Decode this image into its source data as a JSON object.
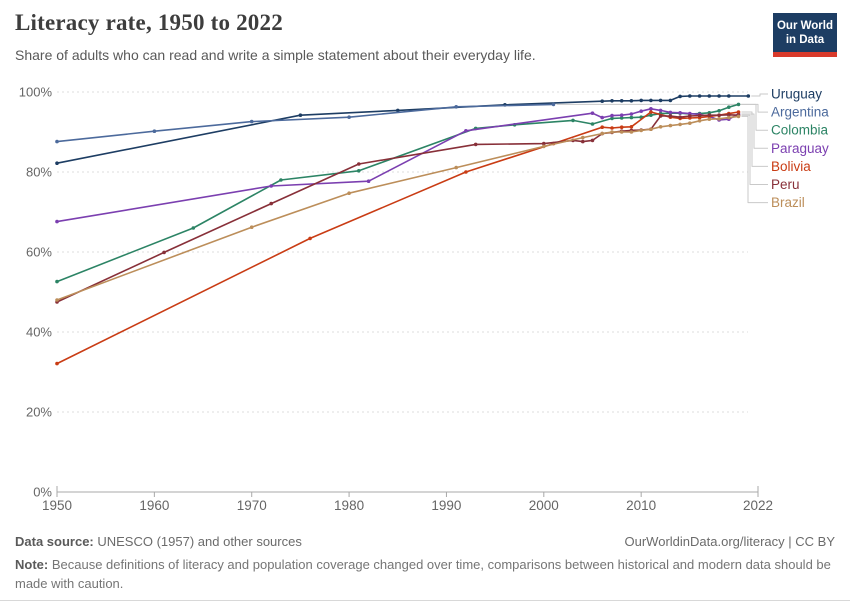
{
  "header": {
    "title": "Literacy rate, 1950 to 2022",
    "subtitle": "Share of adults who can read and write a simple statement about their everyday life.",
    "logo": {
      "line1": "Our World",
      "line2": "in Data",
      "bg": "#1d3d63",
      "accent": "#d93a2b"
    }
  },
  "chart_data": {
    "type": "line",
    "title": "Literacy rate, 1950 to 2022",
    "xlabel": "",
    "ylabel": "",
    "x_axis": {
      "range": [
        1950,
        2022
      ],
      "ticks": [
        1950,
        1960,
        1970,
        1980,
        1990,
        2000,
        2010,
        2022
      ]
    },
    "y_axis": {
      "range": [
        0,
        100
      ],
      "tick_values": [
        0,
        20,
        40,
        60,
        80,
        100
      ],
      "tick_labels": [
        "0%",
        "20%",
        "40%",
        "60%",
        "80%",
        "100%"
      ],
      "grid": "dashed"
    },
    "legend_position": "right",
    "colors": {
      "grid": "#dcdcdc",
      "axis": "#a8a8a8",
      "tick_text": "#666666",
      "connector": "#c9c9c9"
    },
    "series": [
      {
        "name": "Uruguay",
        "color": "#1d3d63",
        "points": [
          [
            1950,
            82.2
          ],
          [
            1975,
            94.2
          ],
          [
            1985,
            95.4
          ],
          [
            1996,
            96.8
          ],
          [
            2006,
            97.7
          ],
          [
            2007,
            97.8
          ],
          [
            2008,
            97.8
          ],
          [
            2009,
            97.8
          ],
          [
            2010,
            97.9
          ],
          [
            2011,
            97.9
          ],
          [
            2012,
            97.9
          ],
          [
            2013,
            97.9
          ],
          [
            2014,
            98.9
          ],
          [
            2015,
            99
          ],
          [
            2016,
            99
          ],
          [
            2017,
            99
          ],
          [
            2018,
            99
          ],
          [
            2019,
            99
          ],
          [
            2021,
            99
          ]
        ]
      },
      {
        "name": "Argentina",
        "color": "#4c6a9c",
        "points": [
          [
            1950,
            87.6
          ],
          [
            1960,
            90.2
          ],
          [
            1970,
            92.6
          ],
          [
            1980,
            93.7
          ],
          [
            1991,
            96.3
          ],
          [
            2001,
            96.9
          ]
        ]
      },
      {
        "name": "Colombia",
        "color": "#2c8465",
        "points": [
          [
            1950,
            52.6
          ],
          [
            1964,
            66
          ],
          [
            1973,
            78
          ],
          [
            1981,
            80.3
          ],
          [
            1993,
            90.9
          ],
          [
            1997,
            91.8
          ],
          [
            2003,
            92.9
          ],
          [
            2005,
            92
          ],
          [
            2007,
            93.4
          ],
          [
            2008,
            93.5
          ],
          [
            2009,
            93.6
          ],
          [
            2010,
            93.7
          ],
          [
            2011,
            94.2
          ],
          [
            2012,
            94.6
          ],
          [
            2013,
            94.7
          ],
          [
            2014,
            94.7
          ],
          [
            2015,
            94.5
          ],
          [
            2016,
            94.6
          ],
          [
            2017,
            94.8
          ],
          [
            2018,
            95.3
          ],
          [
            2019,
            96.2
          ],
          [
            2020,
            96.9
          ]
        ]
      },
      {
        "name": "Paraguay",
        "color": "#7b3fb0",
        "points": [
          [
            1950,
            67.6
          ],
          [
            1972,
            76.5
          ],
          [
            1982,
            77.7
          ],
          [
            1992,
            90.3
          ],
          [
            2005,
            94.7
          ],
          [
            2006,
            93.6
          ],
          [
            2007,
            94.1
          ],
          [
            2008,
            94.2
          ],
          [
            2009,
            94.5
          ],
          [
            2010,
            95.2
          ],
          [
            2011,
            95.8
          ],
          [
            2012,
            95.4
          ],
          [
            2013,
            94.9
          ],
          [
            2014,
            94.8
          ],
          [
            2015,
            94.6
          ],
          [
            2016,
            94.4
          ],
          [
            2017,
            93.9
          ],
          [
            2018,
            93
          ],
          [
            2019,
            93.2
          ],
          [
            2020,
            94.5
          ]
        ]
      },
      {
        "name": "Bolivia",
        "color": "#c93c14",
        "points": [
          [
            1950,
            32.1
          ],
          [
            1976,
            63.4
          ],
          [
            1992,
            80
          ],
          [
            2001,
            87.1
          ],
          [
            2006,
            91.2
          ],
          [
            2007,
            91
          ],
          [
            2008,
            91.2
          ],
          [
            2009,
            91.3
          ],
          [
            2011,
            95
          ],
          [
            2013,
            93.7
          ],
          [
            2014,
            93.4
          ],
          [
            2015,
            93.5
          ],
          [
            2016,
            93.6
          ],
          [
            2017,
            93.9
          ],
          [
            2018,
            94.2
          ],
          [
            2019,
            94.6
          ],
          [
            2020,
            95
          ]
        ]
      },
      {
        "name": "Peru",
        "color": "#883039",
        "points": [
          [
            1950,
            47.5
          ],
          [
            1961,
            59.9
          ],
          [
            1972,
            72.1
          ],
          [
            1981,
            82
          ],
          [
            1993,
            86.9
          ],
          [
            2000,
            87.1
          ],
          [
            2003,
            87.9
          ],
          [
            2004,
            87.6
          ],
          [
            2005,
            87.9
          ],
          [
            2006,
            89.6
          ],
          [
            2007,
            89.9
          ],
          [
            2008,
            90.2
          ],
          [
            2009,
            90.4
          ],
          [
            2010,
            90.5
          ],
          [
            2011,
            90.7
          ],
          [
            2012,
            94
          ],
          [
            2013,
            94
          ],
          [
            2014,
            93.7
          ],
          [
            2015,
            94
          ],
          [
            2016,
            94.1
          ],
          [
            2017,
            94.2
          ],
          [
            2018,
            94.2
          ],
          [
            2019,
            94.3
          ],
          [
            2020,
            94.2
          ]
        ]
      },
      {
        "name": "Brazil",
        "color": "#bc8e5a",
        "points": [
          [
            1950,
            48
          ],
          [
            1970,
            66.2
          ],
          [
            1980,
            74.7
          ],
          [
            1991,
            81.1
          ],
          [
            2000,
            86.4
          ],
          [
            2004,
            88.6
          ],
          [
            2006,
            89.6
          ],
          [
            2007,
            90
          ],
          [
            2008,
            90
          ],
          [
            2009,
            90
          ],
          [
            2010,
            90.4
          ],
          [
            2011,
            90.7
          ],
          [
            2012,
            91.3
          ],
          [
            2013,
            91.6
          ],
          [
            2014,
            91.9
          ],
          [
            2015,
            92.2
          ],
          [
            2016,
            92.8
          ],
          [
            2017,
            93.2
          ],
          [
            2018,
            93.3
          ],
          [
            2019,
            93.6
          ],
          [
            2020,
            93.9
          ]
        ]
      }
    ]
  },
  "footer": {
    "datasource_label": "Data source:",
    "datasource_text": " UNESCO (1957) and other sources",
    "link": "OurWorldinData.org/literacy | CC BY",
    "note_label": "Note:",
    "note_text": " Because definitions of literacy and population coverage changed over time, comparisons between historical and modern data should be made with caution."
  }
}
